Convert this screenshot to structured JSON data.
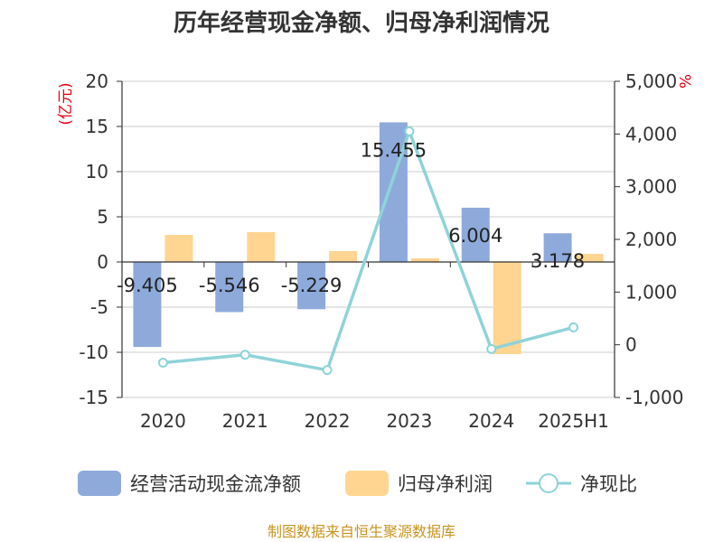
{
  "chart_data": {
    "type": "bar",
    "title": "历年经营现金净额、归母净利润情况",
    "categories": [
      "2020",
      "2021",
      "2022",
      "2023",
      "2024",
      "2025H1"
    ],
    "left_axis": {
      "unit": "(亿元)",
      "ylim": [
        -15,
        20
      ],
      "ticks": [
        20,
        15,
        10,
        5,
        0,
        -5,
        -10,
        -15
      ]
    },
    "right_axis": {
      "unit": "%",
      "ylim": [
        -1000,
        5000
      ],
      "ticks": [
        5000,
        4000,
        3000,
        2000,
        1000,
        0,
        -1000
      ],
      "tick_labels": [
        "5,000",
        "4,000",
        "3,000",
        "2,000",
        "1,000",
        "0",
        "-1,000"
      ]
    },
    "series": [
      {
        "name": "经营活动现金流净额",
        "type": "bar",
        "axis": "left",
        "color": "#8eaadb",
        "values": [
          -9.405,
          -5.546,
          -5.229,
          15.455,
          6.004,
          3.178
        ],
        "labels": [
          "-9.405",
          "-5.546",
          "-5.229",
          "15.455",
          "6.004",
          "3.178"
        ]
      },
      {
        "name": "归母净利润",
        "type": "bar",
        "axis": "left",
        "color": "#ffd591",
        "values": [
          3.0,
          3.3,
          1.2,
          0.4,
          -10.2,
          0.9
        ]
      },
      {
        "name": "净现比",
        "type": "line",
        "axis": "right",
        "color": "#8fd3d8",
        "values": [
          -340,
          -190,
          -480,
          4050,
          -80,
          330
        ]
      }
    ],
    "legend_position": "bottom",
    "grid": true
  },
  "source_text": "制图数据来自恒生聚源数据库"
}
